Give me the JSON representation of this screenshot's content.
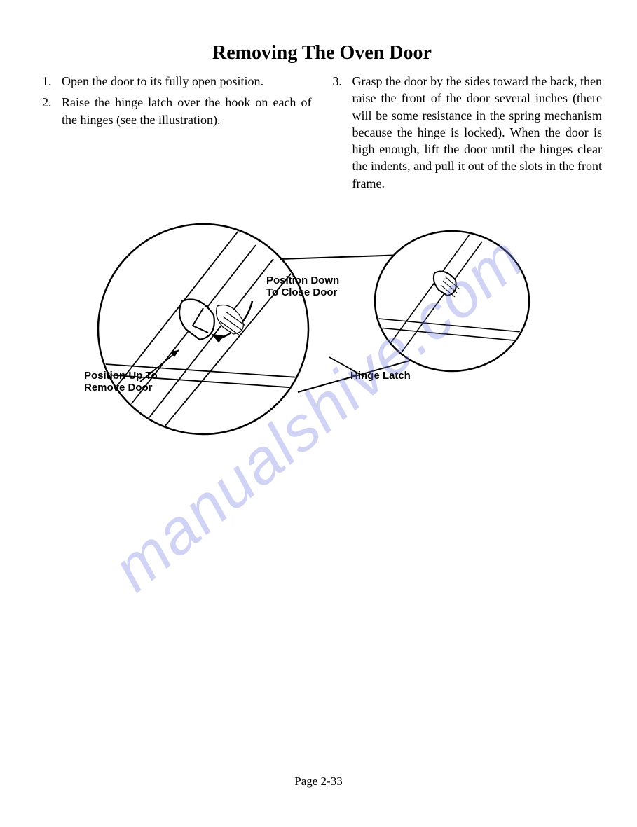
{
  "title": "Removing The Oven Door",
  "col1": {
    "steps": [
      {
        "num": "1.",
        "text": "Open the door to its fully open position."
      },
      {
        "num": "2.",
        "text": "Raise the hinge latch over the hook on each of the hinges (see the illustration)."
      }
    ]
  },
  "col2": {
    "steps": [
      {
        "num": "3.",
        "text": "Grasp the door by the sides toward the back, then raise the front of the door several inches (there will be some resistance in the spring mechanism because the hinge is locked). When the door is high enough, lift the door until the hinges clear the indents, and pull it out of the slots in the front frame."
      }
    ]
  },
  "illustration": {
    "labels": {
      "position_down": "Position Down\nTo Close Door",
      "position_up": "Position Up To\nRemove Door",
      "hinge_latch": "Hinge Latch"
    },
    "stroke": "#000000",
    "stroke_width_outer": 2.5,
    "stroke_width_inner": 1.8,
    "fill_bg": "#ffffff"
  },
  "watermark": {
    "text": "manualshive.com",
    "color": "rgba(120,130,220,0.35)",
    "font_size": 90,
    "rotation_deg": -40
  },
  "page_number": "Page 2-33"
}
